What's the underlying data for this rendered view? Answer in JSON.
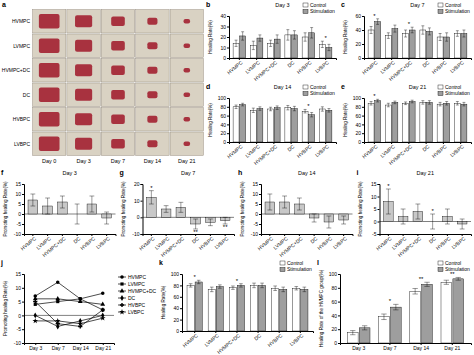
{
  "photo_panel": {
    "panel": "a",
    "rows": [
      "HVMPC",
      "LVMPC",
      "HVMPC+DC",
      "DC",
      "HVBPC",
      "LVBPC"
    ],
    "columns": [
      "Day 0",
      "Day 3",
      "Day 7",
      "Day 14",
      "Day 21"
    ]
  },
  "chart_data": [
    {
      "panel": "b",
      "type": "bar",
      "title": "Day 3",
      "y_label": "Healing Rate(%)",
      "categories": [
        "HVMPC",
        "LVMPC",
        "HVMPC+DC",
        "DC",
        "HVBPC",
        "LVBPC"
      ],
      "series": [
        {
          "name": "Control",
          "color": "#ffffff",
          "values": [
            14,
            12,
            14,
            22,
            20,
            13
          ],
          "errors": [
            3,
            4,
            3,
            5,
            4,
            3
          ]
        },
        {
          "name": "Stimulation",
          "color": "#9e9e9e",
          "values": [
            21,
            19,
            18,
            22,
            24,
            10
          ],
          "errors": [
            4,
            3,
            4,
            4,
            5,
            3
          ]
        }
      ],
      "ylim": [
        0,
        40
      ],
      "yticks": [
        0,
        10,
        20,
        30,
        40
      ],
      "legend": "top-right",
      "annotations": [
        {
          "category": "LVBPC",
          "text": "*"
        }
      ]
    },
    {
      "panel": "c",
      "type": "bar",
      "title": "Day 7",
      "y_label": "Healing Rate(%)",
      "categories": [
        "HVMPC",
        "LVMPC",
        "HVMPC+DC",
        "DC",
        "HVBPC",
        "LVBPC"
      ],
      "series": [
        {
          "name": "Control",
          "color": "#ffffff",
          "values": [
            40,
            32,
            35,
            40,
            30,
            35
          ],
          "errors": [
            5,
            4,
            5,
            6,
            5,
            4
          ]
        },
        {
          "name": "Stimulation",
          "color": "#9e9e9e",
          "values": [
            52,
            42,
            40,
            38,
            30,
            35
          ],
          "errors": [
            4,
            5,
            4,
            5,
            6,
            5
          ]
        }
      ],
      "ylim": [
        0,
        60
      ],
      "yticks": [
        0,
        20,
        40,
        60
      ],
      "legend": "top-right",
      "annotations": [
        {
          "category": "HVMPC",
          "text": "*"
        },
        {
          "category": "HVMPC+DC",
          "text": "*"
        }
      ]
    },
    {
      "panel": "d",
      "type": "bar",
      "title": "Day 14",
      "y_label": "Healing Rate(%)",
      "categories": [
        "HVMPC",
        "LVMPC",
        "HVMPC+DC",
        "DC",
        "HVBPC",
        "LVBPC"
      ],
      "series": [
        {
          "name": "Control",
          "color": "#ffffff",
          "values": [
            80,
            72,
            75,
            78,
            70,
            75
          ],
          "errors": [
            4,
            5,
            4,
            5,
            4,
            5
          ]
        },
        {
          "name": "Stimulation",
          "color": "#9e9e9e",
          "values": [
            85,
            76,
            78,
            76,
            62,
            72
          ],
          "errors": [
            3,
            4,
            4,
            5,
            5,
            4
          ]
        }
      ],
      "ylim": [
        0,
        100
      ],
      "yticks": [
        0,
        20,
        40,
        60,
        80,
        100
      ],
      "legend": "top-right",
      "annotations": [
        {
          "category": "HVBPC",
          "text": "*"
        }
      ]
    },
    {
      "panel": "e",
      "type": "bar",
      "title": "Day 21",
      "y_label": "Healing Rate(%)",
      "categories": [
        "HVMPC",
        "LVMPC",
        "HVMPC+DC",
        "DC",
        "HVBPC",
        "LVBPC"
      ],
      "series": [
        {
          "name": "Control",
          "color": "#ffffff",
          "values": [
            88,
            84,
            88,
            90,
            86,
            88
          ],
          "errors": [
            4,
            4,
            3,
            4,
            4,
            4
          ]
        },
        {
          "name": "Stimulation",
          "color": "#9e9e9e",
          "values": [
            94,
            90,
            92,
            90,
            88,
            86
          ],
          "errors": [
            3,
            3,
            3,
            4,
            4,
            4
          ]
        }
      ],
      "ylim": [
        0,
        100
      ],
      "yticks": [
        0,
        20,
        40,
        60,
        80,
        100
      ],
      "legend": "top-right",
      "annotations": [
        {
          "category": "HVMPC",
          "text": "*"
        }
      ]
    },
    {
      "panel": "f",
      "type": "bar",
      "title": "Day 3",
      "y_label": "Promoting healing Rate(%)",
      "categories": [
        "HVMPC",
        "LVMPC",
        "HVMPC+DC",
        "DC",
        "HVBPC",
        "LVBPC"
      ],
      "values": [
        7,
        4,
        6,
        0,
        5,
        -2
      ],
      "errors": [
        3,
        4,
        3,
        5,
        4,
        3
      ],
      "color": "#c8c8c8",
      "ylim": [
        -10,
        15
      ],
      "yticks": [
        -10,
        -5,
        0,
        5,
        10,
        15
      ]
    },
    {
      "panel": "g",
      "type": "bar",
      "title": "Day 7",
      "y_label": "Promoting healing Rate(%)",
      "categories": [
        "HVMPC",
        "LVMPC",
        "HVMPC+DC",
        "DC",
        "HVBPC",
        "LVBPC"
      ],
      "values": [
        12,
        5,
        6,
        -4,
        -3,
        -2
      ],
      "errors": [
        4,
        2,
        3,
        3,
        2,
        2
      ],
      "color": "#c8c8c8",
      "ylim": [
        -10,
        20
      ],
      "yticks": [
        -10,
        0,
        10,
        20
      ],
      "annotations": [
        {
          "category": "HVMPC",
          "text": "*"
        },
        {
          "category": "DC",
          "text": "**"
        },
        {
          "category": "LVBPC",
          "text": "**"
        }
      ]
    },
    {
      "panel": "h",
      "type": "bar",
      "title": "Day 14",
      "y_label": "Promoting healing Rate(%)",
      "categories": [
        "HVMPC",
        "LVMPC",
        "HVMPC+DC",
        "DC",
        "HVBPC",
        "LVBPC"
      ],
      "values": [
        6,
        6,
        5,
        -2,
        -4,
        -3
      ],
      "errors": [
        4,
        3,
        3,
        2,
        3,
        2
      ],
      "color": "#c8c8c8",
      "ylim": [
        -10,
        15
      ],
      "yticks": [
        -10,
        -5,
        0,
        5,
        10,
        15
      ]
    },
    {
      "panel": "i",
      "type": "bar",
      "title": "Day 21",
      "y_label": "Promoting healing Rate(%)",
      "categories": [
        "HVMPC",
        "LVMPC",
        "HVMPC+DC",
        "DC",
        "HVBPC",
        "LVBPC"
      ],
      "values": [
        8,
        2,
        4,
        0,
        2,
        -1
      ],
      "errors": [
        5,
        3,
        3,
        3,
        3,
        2
      ],
      "color": "#c8c8c8",
      "ylim": [
        -5,
        15
      ],
      "yticks": [
        -5,
        0,
        5,
        10,
        15
      ],
      "annotations": [
        {
          "category": "HVMPC",
          "text": "*"
        },
        {
          "category": "DC",
          "text": "*"
        }
      ]
    },
    {
      "panel": "j",
      "type": "line",
      "y_label": "Promoting healing Rate(%)",
      "categories": [
        "Day 3",
        "Day 7",
        "Day 14",
        "Day 21"
      ],
      "series": [
        {
          "name": "HVMPC",
          "color": "#000000",
          "marker": "circle",
          "values": [
            7,
            12,
            6,
            8
          ]
        },
        {
          "name": "LVMPC",
          "color": "#000000",
          "marker": "square",
          "values": [
            4,
            5,
            6,
            2
          ]
        },
        {
          "name": "HVMPC+DC",
          "color": "#000000",
          "marker": "triangle",
          "values": [
            6,
            6,
            5,
            4
          ]
        },
        {
          "name": "DC",
          "color": "#000000",
          "marker": "diamond",
          "values": [
            0,
            -4,
            -2,
            0
          ]
        },
        {
          "name": "HVBPC",
          "color": "#000000",
          "marker": "cross",
          "values": [
            5,
            -3,
            -4,
            2
          ]
        },
        {
          "name": "LVBPC",
          "color": "#000000",
          "marker": "star",
          "values": [
            -2,
            -2,
            -3,
            -1
          ]
        }
      ],
      "ylim": [
        -10,
        15
      ],
      "yticks": [
        -10,
        -5,
        0,
        5,
        10,
        15
      ],
      "legend": "right"
    },
    {
      "panel": "k",
      "type": "bar",
      "y_label": "Healing Rate(%)",
      "categories": [
        "HVMPC",
        "LVMPC",
        "HVMPC+DC",
        "DC",
        "HVBPC",
        "LVBPC"
      ],
      "series": [
        {
          "name": "Control",
          "color": "#ffffff",
          "values": [
            80,
            73,
            76,
            80,
            75,
            75
          ],
          "errors": [
            3,
            4,
            3,
            4,
            4,
            3
          ]
        },
        {
          "name": "Stimulation",
          "color": "#9e9e9e",
          "values": [
            86,
            78,
            80,
            80,
            73,
            73
          ],
          "errors": [
            3,
            3,
            3,
            4,
            4,
            4
          ]
        }
      ],
      "ylim": [
        0,
        100
      ],
      "yticks": [
        0,
        20,
        40,
        60,
        80,
        100
      ],
      "legend": "top-right",
      "annotations": [
        {
          "category": "HVMPC",
          "text": "*"
        },
        {
          "category": "HVMPC+DC",
          "text": "*"
        }
      ]
    },
    {
      "panel": "l",
      "type": "bar",
      "y_label": "Healing Rate of the HVMPC group(%)",
      "categories": [
        "Day 3",
        "Day 7",
        "Day 14",
        "Day 21"
      ],
      "series": [
        {
          "name": "Control",
          "color": "#ffffff",
          "values": [
            15,
            38,
            75,
            88
          ],
          "errors": [
            3,
            4,
            4,
            3
          ]
        },
        {
          "name": "Stimulation",
          "color": "#9e9e9e",
          "values": [
            22,
            52,
            85,
            93
          ],
          "errors": [
            3,
            4,
            3,
            2
          ]
        }
      ],
      "ylim": [
        0,
        100
      ],
      "yticks": [
        0,
        20,
        40,
        60,
        80,
        100
      ],
      "legend": "top-right",
      "annotations": [
        {
          "category": "Day 7",
          "text": "*"
        },
        {
          "category": "Day 14",
          "text": "**"
        },
        {
          "category": "Day 21",
          "text": "**"
        }
      ]
    }
  ]
}
